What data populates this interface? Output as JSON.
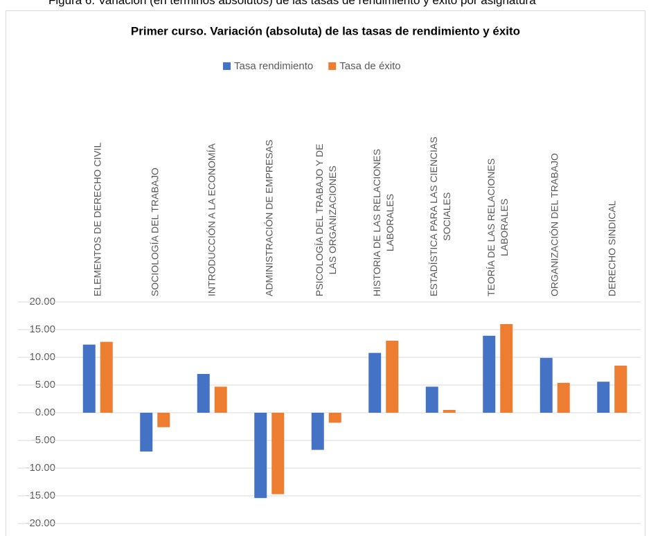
{
  "caption": "Figura 6. Variación (en términos absolutos) de las tasas de rendimiento y éxito por asignatura",
  "chart_data": {
    "type": "bar",
    "title": "Primer curso. Variación (absoluta) de las tasas de rendimiento y éxito",
    "categories": [
      "ELEMENTOS DE DERECHO CIVIL",
      "SOCIOLOGÍA DEL TRABAJO",
      "INTRODUCCIÓN A LA ECONOMÍA",
      "ADMINISTRACIÓN DE EMPRESAS",
      "PSICOLOGÍA DEL TRABAJO Y DE\nLAS ORGANIZACIONES",
      "HISTORIA DE LAS RELACIONES\nLABORALES",
      "ESTADÍSTICA PARA LAS CIENCIAS\nSOCIALES",
      "TEORÍA DE LAS RELACIONES\nLABORALES",
      "ORGANIZACIÓN DEL TRABAJO",
      "DERECHO SINDICAL"
    ],
    "series": [
      {
        "name": "Tasa rendimiento",
        "color": "#4472c4",
        "values": [
          12.3,
          -7.0,
          7.0,
          -15.4,
          -6.7,
          10.8,
          4.7,
          13.9,
          9.9,
          5.6
        ]
      },
      {
        "name": "Tasa de éxito",
        "color": "#ed7d31",
        "values": [
          12.8,
          -2.6,
          4.7,
          -14.7,
          -1.8,
          13.0,
          0.5,
          16.0,
          5.4,
          8.5
        ]
      }
    ],
    "ylim": [
      -20,
      20
    ],
    "yticks": [
      {
        "value": -20,
        "label": "-20.00"
      },
      {
        "value": -15,
        "label": "-15.00"
      },
      {
        "value": -10,
        "label": "-10.00"
      },
      {
        "value": -5,
        "label": "-5.00"
      },
      {
        "value": 0,
        "label": "0.00"
      },
      {
        "value": 5,
        "label": "5.00"
      },
      {
        "value": 10,
        "label": "10.00"
      },
      {
        "value": 15,
        "label": "15.00"
      },
      {
        "value": 20,
        "label": "20.00"
      }
    ],
    "grid": true,
    "legend": "top"
  }
}
